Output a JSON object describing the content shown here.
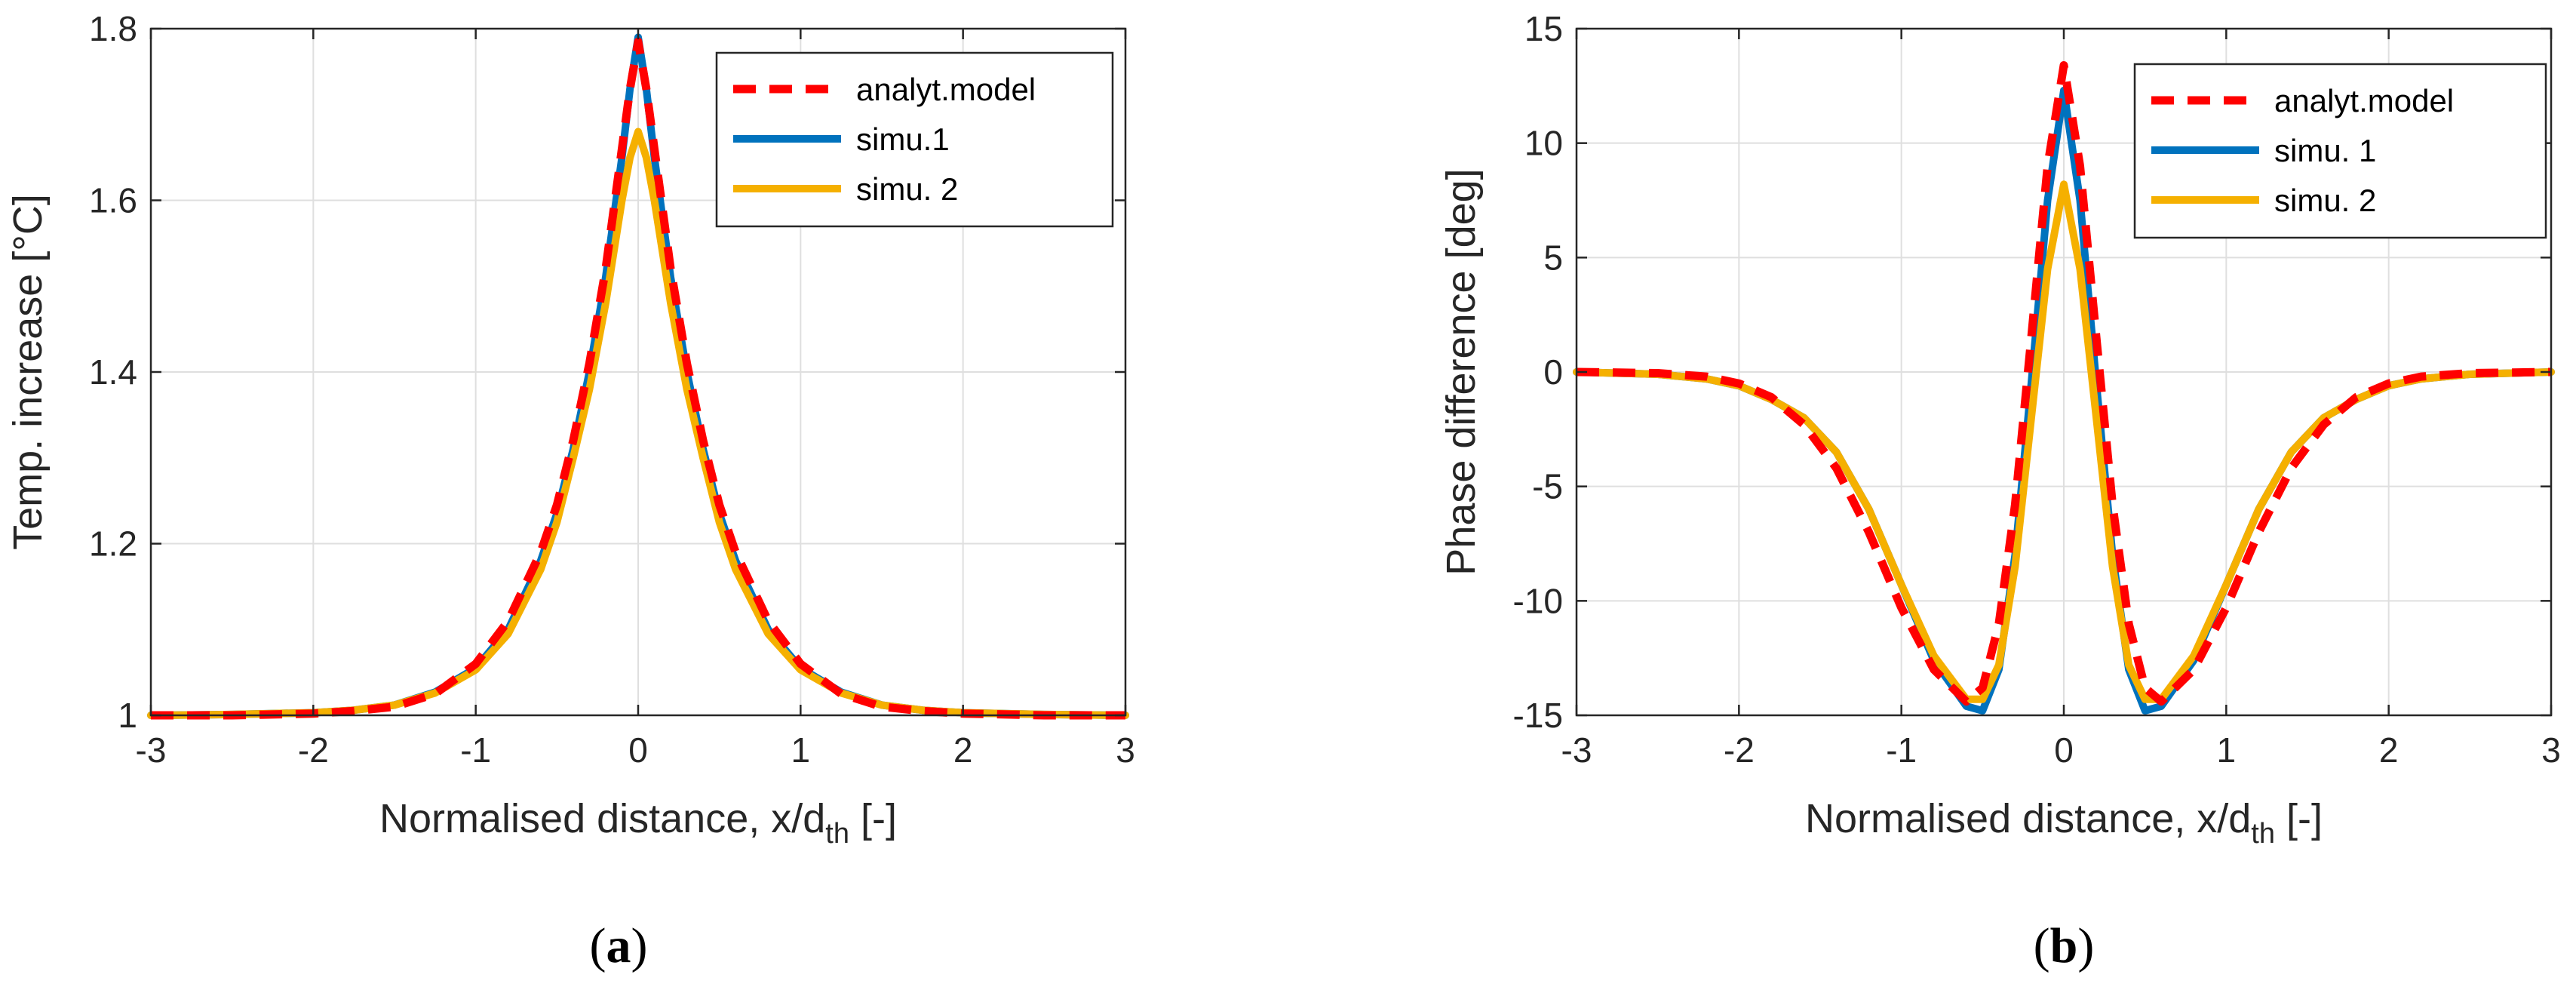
{
  "chart_data": [
    {
      "type": "line",
      "panel_label": "a",
      "xlabel": "Normalised distance, x/d",
      "xlabel_sub": "th",
      "xlabel_suffix": " [-]",
      "ylabel": "Temp. increase [°C]",
      "xlim": [
        -3,
        3
      ],
      "ylim": [
        1,
        1.8
      ],
      "xticks": [
        -3,
        -2,
        -1,
        0,
        1,
        2,
        3
      ],
      "yticks": [
        1,
        1.2,
        1.4,
        1.6,
        1.8
      ],
      "ytick_labels": [
        "1",
        "1.2",
        "1.4",
        "1.6",
        "1.8"
      ],
      "grid": true,
      "legend": "top-right",
      "series": [
        {
          "name": "analyt.model",
          "color": "#ff0000",
          "style": "dashed",
          "x": [
            -3,
            -2.5,
            -2,
            -1.75,
            -1.5,
            -1.25,
            -1,
            -0.8,
            -0.6,
            -0.5,
            -0.4,
            -0.3,
            -0.2,
            -0.1,
            -0.05,
            0,
            0.05,
            0.1,
            0.2,
            0.3,
            0.4,
            0.5,
            0.6,
            0.8,
            1,
            1.25,
            1.5,
            1.75,
            2,
            2.5,
            3
          ],
          "y": [
            1.0,
            1.0,
            1.002,
            1.005,
            1.01,
            1.025,
            1.06,
            1.11,
            1.19,
            1.245,
            1.32,
            1.41,
            1.52,
            1.66,
            1.73,
            1.785,
            1.73,
            1.66,
            1.52,
            1.41,
            1.32,
            1.245,
            1.19,
            1.11,
            1.06,
            1.025,
            1.01,
            1.005,
            1.002,
            1.0,
            1.0
          ]
        },
        {
          "name": "simu.1",
          "color": "#0072bd",
          "style": "solid",
          "x": [
            -3,
            -2.5,
            -2,
            -1.75,
            -1.5,
            -1.25,
            -1,
            -0.8,
            -0.6,
            -0.5,
            -0.4,
            -0.3,
            -0.2,
            -0.1,
            -0.05,
            0,
            0.05,
            0.1,
            0.2,
            0.3,
            0.4,
            0.5,
            0.6,
            0.8,
            1,
            1.25,
            1.5,
            1.75,
            2,
            2.5,
            3
          ],
          "y": [
            1.0,
            1.001,
            1.003,
            1.006,
            1.012,
            1.027,
            1.055,
            1.1,
            1.18,
            1.235,
            1.31,
            1.4,
            1.51,
            1.65,
            1.73,
            1.79,
            1.73,
            1.65,
            1.51,
            1.4,
            1.31,
            1.235,
            1.18,
            1.1,
            1.055,
            1.027,
            1.012,
            1.006,
            1.003,
            1.001,
            1.0
          ]
        },
        {
          "name": "simu. 2",
          "color": "#f5b000",
          "style": "solid",
          "x": [
            -3,
            -2.5,
            -2,
            -1.75,
            -1.5,
            -1.25,
            -1,
            -0.8,
            -0.6,
            -0.5,
            -0.4,
            -0.3,
            -0.2,
            -0.1,
            -0.05,
            0,
            0.05,
            0.1,
            0.2,
            0.3,
            0.4,
            0.5,
            0.6,
            0.8,
            1,
            1.25,
            1.5,
            1.75,
            2,
            2.5,
            3
          ],
          "y": [
            1.0,
            1.001,
            1.003,
            1.006,
            1.012,
            1.026,
            1.053,
            1.095,
            1.17,
            1.225,
            1.3,
            1.38,
            1.48,
            1.6,
            1.65,
            1.68,
            1.65,
            1.6,
            1.48,
            1.38,
            1.3,
            1.225,
            1.17,
            1.095,
            1.053,
            1.026,
            1.012,
            1.006,
            1.003,
            1.001,
            1.0
          ]
        }
      ]
    },
    {
      "type": "line",
      "panel_label": "b",
      "xlabel": "Normalised distance, x/d",
      "xlabel_sub": "th",
      "xlabel_suffix": " [-]",
      "ylabel": "Phase difference [deg]",
      "xlim": [
        -3,
        3
      ],
      "ylim": [
        -15,
        15
      ],
      "xticks": [
        -3,
        -2,
        -1,
        0,
        1,
        2,
        3
      ],
      "yticks": [
        -15,
        -10,
        -5,
        0,
        5,
        10,
        15
      ],
      "ytick_labels": [
        "-15",
        "-10",
        "-5",
        "0",
        "5",
        "10",
        "15"
      ],
      "grid": true,
      "legend": "top-right",
      "series": [
        {
          "name": "analyt.model",
          "color": "#ff0000",
          "style": "dashed",
          "x": [
            -3,
            -2.5,
            -2.2,
            -2,
            -1.8,
            -1.6,
            -1.4,
            -1.2,
            -1,
            -0.8,
            -0.6,
            -0.5,
            -0.4,
            -0.3,
            -0.2,
            -0.1,
            0,
            0.1,
            0.2,
            0.3,
            0.4,
            0.5,
            0.6,
            0.8,
            1,
            1.2,
            1.4,
            1.6,
            1.8,
            2,
            2.2,
            2.5,
            3
          ],
          "y": [
            0,
            -0.05,
            -0.2,
            -0.5,
            -1.1,
            -2.3,
            -4.2,
            -7.0,
            -10.3,
            -13.0,
            -14.4,
            -13.8,
            -11.0,
            -5.8,
            1.5,
            9.0,
            13.4,
            9.0,
            1.5,
            -5.8,
            -11.0,
            -13.8,
            -14.4,
            -13.0,
            -10.3,
            -7.0,
            -4.2,
            -2.3,
            -1.1,
            -0.5,
            -0.2,
            -0.05,
            0
          ]
        },
        {
          "name": "simu. 1",
          "color": "#0072bd",
          "style": "solid",
          "x": [
            -3,
            -2.5,
            -2.2,
            -2,
            -1.8,
            -1.6,
            -1.4,
            -1.2,
            -1,
            -0.8,
            -0.6,
            -0.5,
            -0.4,
            -0.3,
            -0.2,
            -0.1,
            0,
            0.1,
            0.2,
            0.3,
            0.4,
            0.5,
            0.6,
            0.8,
            1,
            1.2,
            1.4,
            1.6,
            1.8,
            2,
            2.2,
            2.5,
            3
          ],
          "y": [
            0,
            -0.1,
            -0.3,
            -0.6,
            -1.2,
            -2.0,
            -3.5,
            -6.0,
            -9.3,
            -12.6,
            -14.6,
            -14.8,
            -13.0,
            -8.0,
            -0.5,
            7.5,
            12.3,
            7.5,
            -0.5,
            -8.0,
            -13.0,
            -14.8,
            -14.6,
            -12.6,
            -9.3,
            -6.0,
            -3.5,
            -2.0,
            -1.2,
            -0.6,
            -0.3,
            -0.1,
            0
          ]
        },
        {
          "name": "simu. 2",
          "color": "#f5b000",
          "style": "solid",
          "x": [
            -3,
            -2.5,
            -2.2,
            -2,
            -1.8,
            -1.6,
            -1.4,
            -1.2,
            -1,
            -0.8,
            -0.6,
            -0.5,
            -0.4,
            -0.3,
            -0.2,
            -0.1,
            0,
            0.1,
            0.2,
            0.3,
            0.4,
            0.5,
            0.6,
            0.8,
            1,
            1.2,
            1.4,
            1.6,
            1.8,
            2,
            2.2,
            2.5,
            3
          ],
          "y": [
            0,
            -0.1,
            -0.3,
            -0.6,
            -1.2,
            -2.0,
            -3.5,
            -6.0,
            -9.3,
            -12.4,
            -14.3,
            -14.3,
            -12.8,
            -8.5,
            -2.0,
            4.5,
            8.2,
            4.5,
            -2.0,
            -8.5,
            -12.8,
            -14.3,
            -14.3,
            -12.4,
            -9.3,
            -6.0,
            -3.5,
            -2.0,
            -1.2,
            -0.6,
            -0.3,
            -0.1,
            0
          ]
        }
      ]
    }
  ]
}
